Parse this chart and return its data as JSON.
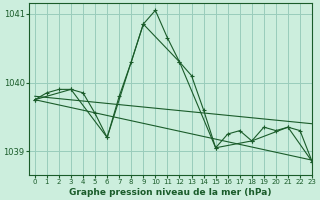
{
  "background_color": "#cceedd",
  "grid_color": "#99ccbb",
  "line_color": "#1a5c2a",
  "xlabel": "Graphe pression niveau de la mer (hPa)",
  "xlim": [
    -0.5,
    23
  ],
  "ylim": [
    1038.65,
    1041.15
  ],
  "yticks": [
    1039,
    1040,
    1041
  ],
  "xticks": [
    0,
    1,
    2,
    3,
    4,
    5,
    6,
    7,
    8,
    9,
    10,
    11,
    12,
    13,
    14,
    15,
    16,
    17,
    18,
    19,
    20,
    21,
    22,
    23
  ],
  "lines": [
    {
      "x": [
        0,
        1,
        2,
        3,
        4,
        5,
        6,
        7,
        8,
        9,
        10,
        11,
        12,
        13,
        14,
        15,
        16,
        17,
        18,
        19,
        20,
        21,
        22,
        23
      ],
      "y": [
        1039.75,
        1039.85,
        1039.9,
        1039.9,
        1039.85,
        1039.55,
        1039.2,
        1039.8,
        1040.3,
        1040.85,
        1041.05,
        1040.65,
        1040.3,
        1040.1,
        1039.6,
        1039.05,
        1039.25,
        1039.3,
        1039.15,
        1039.35,
        1039.3,
        1039.35,
        1039.3,
        1038.85
      ],
      "marker": true
    },
    {
      "x": [
        0,
        3,
        6,
        9,
        12,
        15,
        18,
        21,
        23
      ],
      "y": [
        1039.75,
        1039.9,
        1039.2,
        1040.85,
        1040.3,
        1039.05,
        1039.15,
        1039.35,
        1038.85
      ],
      "marker": true
    },
    {
      "x": [
        0,
        23
      ],
      "y": [
        1039.8,
        1039.4
      ],
      "marker": false
    },
    {
      "x": [
        0,
        23
      ],
      "y": [
        1039.75,
        1038.87
      ],
      "marker": false
    }
  ]
}
